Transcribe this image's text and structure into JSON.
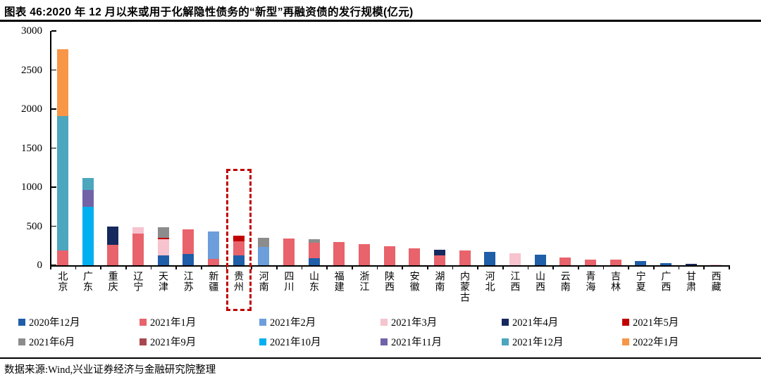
{
  "header": {
    "title": "图表 46:2020 年 12 月以来或用于化解隐性债务的“新型”再融资债的发行规模(亿元)"
  },
  "chart_data": {
    "type": "bar",
    "stacked": true,
    "title": "2020 年 12 月以来或用于化解隐性债务的“新型”再融资债的发行规模(亿元)",
    "xlabel": "",
    "ylabel": "",
    "ylim": [
      0,
      3000
    ],
    "yticks": [
      0,
      500,
      1000,
      1500,
      2000,
      2500,
      3000
    ],
    "grid": false,
    "legend_position": "bottom",
    "categories": [
      "北京",
      "广东",
      "重庆",
      "辽宁",
      "天津",
      "江苏",
      "新疆",
      "贵州",
      "河南",
      "四川",
      "山东",
      "福建",
      "浙江",
      "陕西",
      "安徽",
      "湖南",
      "内蒙古",
      "河北",
      "江西",
      "山西",
      "云南",
      "青海",
      "吉林",
      "宁夏",
      "广西",
      "甘肃",
      "西藏"
    ],
    "highlight_box": {
      "category": "贵州",
      "color": "#C00000"
    },
    "series": [
      {
        "name": "2020年12月",
        "color": "#1F5EA8",
        "values": [
          0,
          0,
          0,
          0,
          130,
          140,
          0,
          130,
          0,
          0,
          90,
          0,
          0,
          0,
          0,
          0,
          0,
          175,
          0,
          135,
          0,
          0,
          0,
          50,
          30,
          0,
          0
        ]
      },
      {
        "name": "2021年1月",
        "color": "#E8636B",
        "values": [
          190,
          0,
          265,
          410,
          0,
          320,
          85,
          175,
          0,
          340,
          195,
          300,
          270,
          245,
          220,
          130,
          185,
          0,
          0,
          0,
          95,
          70,
          70,
          0,
          0,
          0,
          0
        ]
      },
      {
        "name": "2021年2月",
        "color": "#6D9EDC",
        "values": [
          0,
          0,
          0,
          0,
          0,
          0,
          350,
          0,
          230,
          0,
          0,
          0,
          0,
          0,
          0,
          0,
          0,
          0,
          0,
          0,
          0,
          0,
          0,
          0,
          0,
          0,
          0
        ]
      },
      {
        "name": "2021年3月",
        "color": "#F6C3CE",
        "values": [
          0,
          0,
          0,
          80,
          200,
          0,
          0,
          0,
          0,
          0,
          0,
          0,
          0,
          0,
          0,
          0,
          0,
          0,
          150,
          0,
          0,
          0,
          0,
          0,
          0,
          0,
          10
        ]
      },
      {
        "name": "2021年4月",
        "color": "#16295E",
        "values": [
          0,
          0,
          235,
          0,
          0,
          0,
          0,
          0,
          0,
          0,
          0,
          0,
          0,
          0,
          0,
          65,
          0,
          0,
          0,
          0,
          0,
          0,
          0,
          0,
          0,
          20,
          0
        ]
      },
      {
        "name": "2021年5月",
        "color": "#C00000",
        "values": [
          0,
          0,
          0,
          0,
          25,
          0,
          0,
          70,
          0,
          0,
          0,
          0,
          0,
          0,
          0,
          0,
          0,
          0,
          0,
          0,
          0,
          0,
          0,
          0,
          0,
          0,
          0
        ]
      },
      {
        "name": "2021年6月",
        "color": "#8C8C8C",
        "values": [
          0,
          0,
          0,
          0,
          130,
          0,
          0,
          0,
          120,
          0,
          45,
          0,
          0,
          0,
          0,
          0,
          0,
          0,
          0,
          0,
          0,
          0,
          0,
          0,
          0,
          0,
          0
        ]
      },
      {
        "name": "2021年9月",
        "color": "#A8474D",
        "values": [
          0,
          0,
          0,
          0,
          0,
          0,
          0,
          0,
          0,
          0,
          0,
          0,
          0,
          0,
          0,
          0,
          0,
          0,
          0,
          0,
          0,
          0,
          0,
          0,
          0,
          0,
          0
        ]
      },
      {
        "name": "2021年10月",
        "color": "#00B0F0",
        "values": [
          0,
          750,
          0,
          0,
          0,
          0,
          0,
          0,
          0,
          0,
          0,
          0,
          0,
          0,
          0,
          0,
          0,
          0,
          0,
          0,
          0,
          0,
          0,
          0,
          0,
          0,
          0
        ]
      },
      {
        "name": "2021年11月",
        "color": "#7263A8",
        "values": [
          0,
          215,
          0,
          0,
          0,
          0,
          0,
          0,
          0,
          0,
          0,
          0,
          0,
          0,
          0,
          0,
          0,
          0,
          0,
          0,
          0,
          0,
          0,
          0,
          0,
          0,
          0
        ]
      },
      {
        "name": "2021年12月",
        "color": "#4BA6BE",
        "values": [
          1720,
          155,
          0,
          0,
          0,
          0,
          0,
          0,
          0,
          0,
          0,
          0,
          0,
          0,
          0,
          0,
          0,
          0,
          0,
          0,
          0,
          0,
          0,
          0,
          0,
          0,
          0
        ]
      },
      {
        "name": "2022年1月",
        "color": "#F79646",
        "values": [
          855,
          0,
          0,
          0,
          0,
          0,
          0,
          0,
          0,
          0,
          0,
          0,
          0,
          0,
          0,
          0,
          0,
          0,
          0,
          0,
          0,
          0,
          0,
          0,
          0,
          0,
          0
        ]
      }
    ]
  },
  "footer": {
    "source": "数据来源:Wind,兴业证券经济与金融研究院整理"
  }
}
